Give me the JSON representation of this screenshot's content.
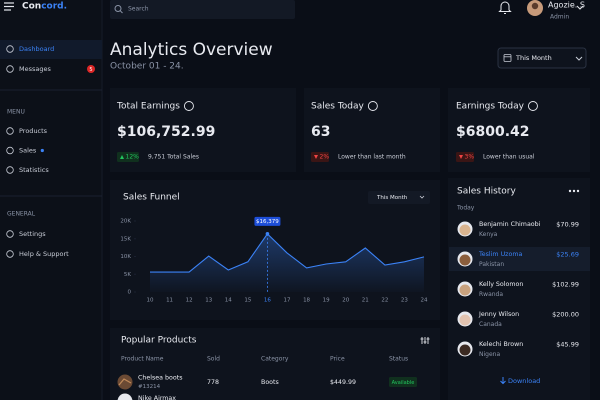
{
  "brand": {
    "name_a": "Con",
    "name_b": "cord."
  },
  "search": "Search",
  "user": {
    "name": "Agozie. S",
    "role": "Admin"
  },
  "sidebar": {
    "main": [
      {
        "label": "Dashboard"
      },
      {
        "label": "Messages",
        "badge": "5"
      }
    ],
    "menu_heading": "MENU",
    "menu": [
      "Products",
      "Sales",
      "Statistics"
    ],
    "general_heading": "GENERAL",
    "general": [
      "Settings",
      "Help & Support"
    ]
  },
  "header": {
    "title": "Analytics Overview",
    "subtitle": "October 01 - 24.",
    "period": "This Month"
  },
  "stats": [
    {
      "label": "Total Earnings",
      "value": "$106,752.99",
      "change": "12%",
      "note": "9,751 Total Sales"
    },
    {
      "label": "Sales Today",
      "value": "63",
      "change": "2%",
      "note": "Lower than last month"
    },
    {
      "label": "Earnings Today",
      "value": "$6800.42",
      "change": "3%",
      "note": "Lower than usual"
    }
  ],
  "chart_data": {
    "type": "line",
    "title": "Sales Funnel",
    "period": "This Month",
    "x": [
      10,
      11,
      12,
      13,
      14,
      15,
      16,
      17,
      18,
      19,
      20,
      21,
      22,
      23,
      24
    ],
    "values": [
      5600,
      5600,
      5600,
      10100,
      6200,
      8500,
      16379,
      11000,
      6800,
      7900,
      8500,
      12400,
      7600,
      8500,
      9900
    ],
    "value_labels": [
      null,
      null,
      null,
      null,
      null,
      null,
      "$16,379",
      null,
      null,
      null,
      null,
      null,
      null,
      null,
      null
    ],
    "color": "#3b82f6",
    "xlim": [
      10,
      24
    ],
    "xticks": [
      10,
      11,
      12,
      13,
      14,
      15,
      16,
      17,
      18,
      19,
      20,
      21,
      22,
      23,
      24
    ],
    "ylim": [
      0,
      20000
    ],
    "yticks": [
      0,
      {
        "value": 5000,
        "label": "5K"
      },
      {
        "value": 10000,
        "label": "10K"
      },
      {
        "value": 15000,
        "label": "15K"
      },
      {
        "value": 20000,
        "label": "20K"
      }
    ],
    "grid": false
  },
  "sales_history": {
    "title": "Sales History",
    "group": "Today",
    "entries": [
      {
        "name": "Benjamin Chimaobi",
        "location": "Kenya",
        "amount": "$70.99"
      },
      {
        "name": "Teslim Uzoma",
        "location": "Pakistan",
        "amount": "$25.69"
      },
      {
        "name": "Kelly Solomon",
        "location": "Rwanda",
        "amount": "$102.99"
      },
      {
        "name": "Jenny Wilson",
        "location": "Canada",
        "amount": "$200.00"
      },
      {
        "name": "Kelechi Brown",
        "location": "Nigena",
        "amount": "$45.99"
      }
    ],
    "action": "Download"
  },
  "products": {
    "title": "Popular Products",
    "columns": [
      "Product Name",
      "Sold",
      "Category",
      "Price",
      "Status"
    ],
    "rows": [
      {
        "name": "Chelsea boots",
        "id": "#13214",
        "sold": "778",
        "category": "Boots",
        "price": "$449.99",
        "status": "Available"
      },
      {
        "name": "Nike Airmax"
      }
    ]
  }
}
